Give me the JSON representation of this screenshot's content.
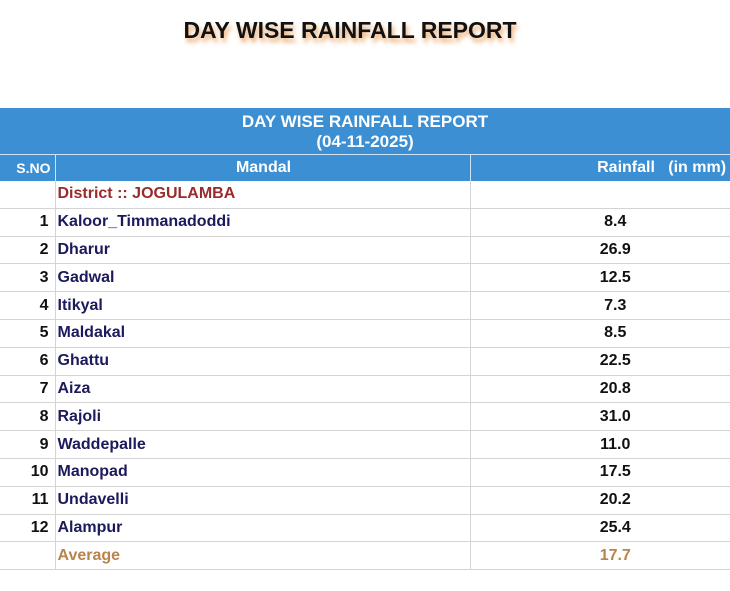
{
  "title": "DAY WISE RAINFALL REPORT",
  "table": {
    "heading": "DAY WISE RAINFALL REPORT",
    "date": "(04-11-2025)",
    "columns": {
      "sno": "S.NO",
      "mandal": "Mandal",
      "rainfall": "Rainfall   (in mm)"
    },
    "district": "District :: JOGULAMBA",
    "rows": [
      {
        "sno": "1",
        "mandal": "Kaloor_Timmanadoddi",
        "rainfall": "8.4"
      },
      {
        "sno": "2",
        "mandal": "Dharur",
        "rainfall": "26.9"
      },
      {
        "sno": "3",
        "mandal": "Gadwal",
        "rainfall": "12.5"
      },
      {
        "sno": "4",
        "mandal": "Itikyal",
        "rainfall": "7.3"
      },
      {
        "sno": "5",
        "mandal": "Maldakal",
        "rainfall": "8.5"
      },
      {
        "sno": "6",
        "mandal": "Ghattu",
        "rainfall": "22.5"
      },
      {
        "sno": "7",
        "mandal": "Aiza",
        "rainfall": "20.8"
      },
      {
        "sno": "8",
        "mandal": "Rajoli",
        "rainfall": "31.0"
      },
      {
        "sno": "9",
        "mandal": "Waddepalle",
        "rainfall": "11.0"
      },
      {
        "sno": "10",
        "mandal": "Manopad",
        "rainfall": "17.5"
      },
      {
        "sno": "11",
        "mandal": "Undavelli",
        "rainfall": "20.2"
      },
      {
        "sno": "12",
        "mandal": "Alampur",
        "rainfall": "25.4"
      }
    ],
    "average": {
      "label": "Average",
      "rainfall": "17.7"
    }
  }
}
